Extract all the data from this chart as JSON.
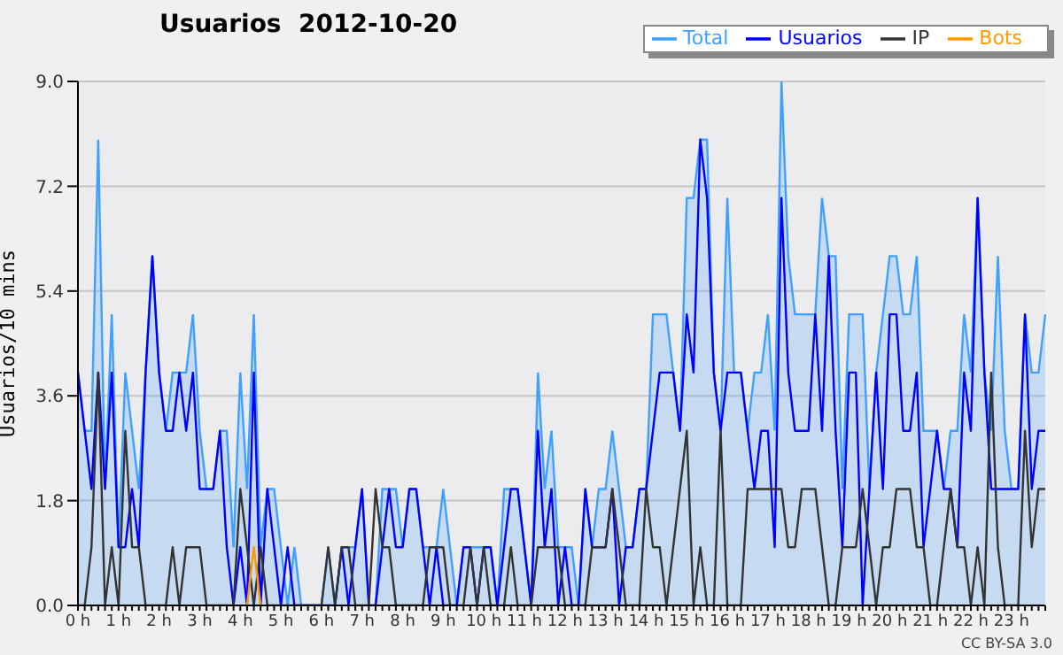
{
  "chart_data": {
    "type": "line",
    "title": "Usuarios  2012-10-20",
    "ylabel": "Usuarios/10 mins",
    "annotations": [
      "CC BY-SA 3.0"
    ],
    "categories": [
      "0 h",
      null,
      null,
      null,
      null,
      null,
      "1 h",
      null,
      null,
      null,
      null,
      null,
      "2 h",
      null,
      null,
      null,
      null,
      null,
      "3 h",
      null,
      null,
      null,
      null,
      null,
      "4 h",
      null,
      null,
      null,
      null,
      null,
      "5 h",
      null,
      null,
      null,
      null,
      null,
      "6 h",
      null,
      null,
      null,
      null,
      null,
      "7 h",
      null,
      null,
      null,
      null,
      null,
      "8 h",
      null,
      null,
      null,
      null,
      null,
      "9 h",
      null,
      null,
      null,
      null,
      null,
      "10 h",
      null,
      null,
      null,
      null,
      null,
      "11 h",
      null,
      null,
      null,
      null,
      null,
      "12 h",
      null,
      null,
      null,
      null,
      null,
      "13 h",
      null,
      null,
      null,
      null,
      null,
      "14 h",
      null,
      null,
      null,
      null,
      null,
      "15 h",
      null,
      null,
      null,
      null,
      null,
      "16 h",
      null,
      null,
      null,
      null,
      null,
      "17 h",
      null,
      null,
      null,
      null,
      null,
      "18 h",
      null,
      null,
      null,
      null,
      null,
      "19 h",
      null,
      null,
      null,
      null,
      null,
      "20 h",
      null,
      null,
      null,
      null,
      null,
      "21 h",
      null,
      null,
      null,
      null,
      null,
      "22 h",
      null,
      null,
      null,
      null,
      null,
      "23 h",
      null,
      null,
      null,
      null,
      null
    ],
    "series": [
      {
        "name": "Total",
        "type": "area",
        "color": "#3fa0ff",
        "values": [
          4,
          3,
          3,
          8,
          2,
          5,
          1,
          4,
          3,
          2,
          4,
          6,
          4,
          3,
          4,
          4,
          4,
          5,
          3,
          2,
          2,
          3,
          3,
          1,
          4,
          2,
          5,
          1,
          2,
          2,
          1,
          0,
          1,
          0,
          0,
          0,
          0,
          1,
          0,
          1,
          1,
          1,
          2,
          0,
          0,
          2,
          2,
          2,
          1,
          2,
          2,
          1,
          1,
          1,
          2,
          1,
          0,
          1,
          1,
          1,
          1,
          1,
          0,
          2,
          2,
          2,
          1,
          0,
          4,
          2,
          3,
          1,
          1,
          1,
          0,
          2,
          1,
          2,
          2,
          3,
          2,
          1,
          1,
          2,
          2,
          5,
          5,
          5,
          4,
          3,
          7,
          7,
          8,
          8,
          4,
          3,
          7,
          4,
          4,
          3,
          4,
          4,
          5,
          3,
          9,
          6,
          5,
          5,
          5,
          5,
          7,
          6,
          6,
          2,
          5,
          5,
          5,
          2,
          4,
          5,
          6,
          6,
          5,
          5,
          6,
          3,
          3,
          3,
          2,
          3,
          3,
          5,
          4,
          7,
          4,
          3,
          6,
          3,
          2,
          2,
          5,
          4,
          4,
          5
        ]
      },
      {
        "name": "Usuarios",
        "color": "#0000ff",
        "values": [
          4,
          3,
          2,
          4,
          2,
          4,
          1,
          1,
          2,
          1,
          4,
          6,
          4,
          3,
          3,
          4,
          3,
          4,
          2,
          2,
          2,
          3,
          1,
          0,
          1,
          0,
          4,
          0,
          2,
          1,
          0,
          1,
          0,
          0,
          0,
          0,
          0,
          0,
          0,
          1,
          0,
          1,
          2,
          0,
          0,
          1,
          2,
          1,
          1,
          2,
          2,
          1,
          0,
          1,
          0,
          0,
          0,
          1,
          1,
          0,
          1,
          1,
          0,
          1,
          2,
          2,
          1,
          0,
          3,
          1,
          2,
          0,
          1,
          0,
          0,
          2,
          1,
          1,
          1,
          2,
          0,
          1,
          1,
          2,
          2,
          3,
          4,
          4,
          4,
          3,
          5,
          4,
          8,
          7,
          4,
          3,
          4,
          4,
          4,
          3,
          2,
          3,
          3,
          1,
          7,
          4,
          3,
          3,
          3,
          5,
          3,
          6,
          3,
          1,
          4,
          4,
          0,
          2,
          4,
          2,
          5,
          5,
          3,
          3,
          4,
          1,
          2,
          3,
          2,
          2,
          1,
          4,
          3,
          7,
          4,
          2,
          2,
          2,
          2,
          2,
          5,
          2,
          3,
          3
        ]
      },
      {
        "name": "IP",
        "color": "#333333",
        "values": [
          0,
          0,
          1,
          4,
          0,
          1,
          0,
          3,
          1,
          1,
          0,
          0,
          0,
          0,
          1,
          0,
          1,
          1,
          1,
          0,
          0,
          0,
          0,
          0,
          2,
          1,
          0,
          1,
          0,
          0,
          0,
          0,
          0,
          0,
          0,
          0,
          0,
          1,
          0,
          1,
          1,
          0,
          0,
          0,
          2,
          1,
          1,
          0,
          0,
          0,
          0,
          0,
          1,
          1,
          1,
          0,
          0,
          0,
          1,
          0,
          1,
          0,
          0,
          0,
          1,
          0,
          0,
          0,
          1,
          1,
          1,
          1,
          0,
          0,
          0,
          0,
          1,
          1,
          1,
          2,
          1,
          0,
          0,
          0,
          2,
          1,
          1,
          0,
          1,
          2,
          3,
          0,
          1,
          0,
          0,
          3,
          0,
          0,
          0,
          2,
          2,
          2,
          2,
          2,
          2,
          1,
          1,
          2,
          2,
          2,
          1,
          0,
          0,
          1,
          1,
          1,
          2,
          1,
          0,
          1,
          1,
          2,
          2,
          2,
          1,
          1,
          0,
          0,
          1,
          2,
          1,
          1,
          0,
          1,
          0,
          4,
          1,
          0,
          0,
          0,
          3,
          1,
          2,
          2
        ]
      },
      {
        "name": "Bots",
        "color": "#ff9900",
        "values": [
          null,
          null,
          null,
          null,
          null,
          null,
          null,
          null,
          null,
          null,
          null,
          null,
          null,
          null,
          null,
          null,
          null,
          null,
          null,
          null,
          null,
          null,
          null,
          null,
          null,
          0,
          1,
          0,
          null,
          null,
          null,
          null,
          null,
          null,
          null,
          null,
          null,
          null,
          null,
          null,
          null,
          null,
          null,
          null,
          null,
          null,
          null,
          null,
          null,
          null,
          null,
          null,
          null,
          null,
          null,
          null,
          null,
          null,
          null,
          null,
          null,
          null,
          null,
          null,
          null,
          null,
          null,
          null,
          null,
          null,
          null,
          null,
          null,
          null,
          null,
          null,
          null,
          null,
          null,
          null,
          null,
          null,
          null,
          null,
          null,
          null,
          null,
          null,
          null,
          null,
          null,
          null,
          null,
          null,
          null,
          null,
          null,
          null,
          null,
          null,
          null,
          null,
          null,
          null,
          null,
          null,
          null,
          null,
          null,
          null,
          null,
          null,
          null,
          null,
          null,
          null,
          null,
          null,
          null,
          null,
          null,
          null,
          null,
          null,
          null,
          null,
          null,
          null,
          null,
          null,
          null,
          null,
          null,
          null,
          null,
          null,
          null,
          null,
          null,
          null,
          null,
          null,
          null,
          null
        ]
      }
    ],
    "ylim": [
      0,
      9
    ],
    "yticks": [
      {
        "value": 0,
        "label": "0.0"
      },
      {
        "value": 1.8,
        "label": "1.8"
      },
      {
        "value": 3.6,
        "label": "3.6"
      },
      {
        "value": 5.4,
        "label": "5.4"
      },
      {
        "value": 7.2,
        "label": "7.2"
      },
      {
        "value": 9,
        "label": "9.0"
      }
    ],
    "grid": "y",
    "legend": "top right"
  }
}
